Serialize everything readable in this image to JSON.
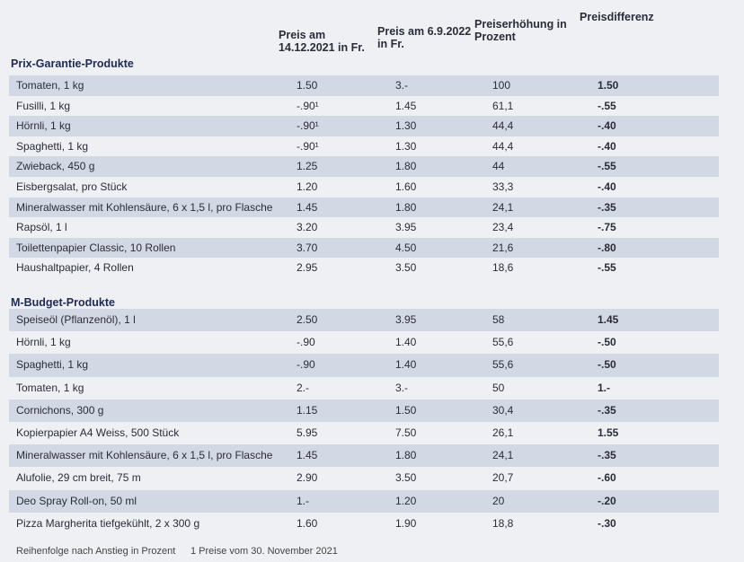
{
  "header": {
    "columns": [
      "Preis am 14.12.2021 in Fr.",
      "Preis am 6.9.2022 in Fr.",
      "Preiserhöhung in Prozent",
      "Preisdifferenz"
    ]
  },
  "sections": [
    {
      "title": "Prix-Garantie-Produkte",
      "rows": [
        [
          "Tomaten, 1 kg",
          "1.50",
          "3.-",
          "100",
          "1.50"
        ],
        [
          "Fusilli, 1 kg",
          "-.90¹",
          "1.45",
          "61,1",
          "-.55"
        ],
        [
          "Hörnli, 1 kg",
          "-.90¹",
          "1.30",
          "44,4",
          "-.40"
        ],
        [
          "Spaghetti, 1 kg",
          "-.90¹",
          "1.30",
          "44,4",
          "-.40"
        ],
        [
          "Zwieback, 450 g",
          "1.25",
          "1.80",
          "44",
          "-.55"
        ],
        [
          "Eisbergsalat, pro Stück",
          "1.20",
          "1.60",
          "33,3",
          "-.40"
        ],
        [
          "Mineralwasser mit Kohlensäure, 6 x 1,5 l, pro Flasche",
          "1.45",
          "1.80",
          "24,1",
          "-.35"
        ],
        [
          "Rapsöl, 1 l",
          "3.20",
          "3.95",
          "23,4",
          "-.75"
        ],
        [
          "Toilettenpapier Classic, 10 Rollen",
          "3.70",
          "4.50",
          "21,6",
          "-.80"
        ],
        [
          "Haushaltpapier, 4 Rollen",
          "2.95",
          "3.50",
          "18,6",
          "-.55"
        ]
      ]
    },
    {
      "title": "M-Budget-Produkte",
      "rows": [
        [
          "Speiseöl (Pflanzenöl), 1 l",
          "2.50",
          "3.95",
          "58",
          "1.45"
        ],
        [
          "Hörnli, 1 kg",
          "-.90",
          "1.40",
          "55,6",
          "-.50"
        ],
        [
          "Spaghetti, 1 kg",
          "-.90",
          "1.40",
          "55,6",
          "-.50"
        ],
        [
          "Tomaten, 1 kg",
          "2.-",
          "3.-",
          "50",
          "1.-"
        ],
        [
          "Cornichons, 300 g",
          "1.15",
          "1.50",
          "30,4",
          "-.35"
        ],
        [
          "Kopierpapier A4 Weiss, 500 Stück",
          "5.95",
          "7.50",
          "26,1",
          "1.55"
        ],
        [
          "Mineralwasser mit Kohlensäure, 6 x 1,5 l, pro Flasche",
          "1.45",
          "1.80",
          "24,1",
          "-.35"
        ],
        [
          "Alufolie, 29 cm breit, 75 m",
          "2.90",
          "3.50",
          "20,7",
          "-.60"
        ],
        [
          "Deo Spray Roll-on, 50 ml",
          "1.-",
          "1.20",
          "20",
          "-.20"
        ],
        [
          "Pizza Margherita tiefgekühlt, 2 x 300 g",
          "1.60",
          "1.90",
          "18,8",
          "-.30"
        ]
      ]
    }
  ],
  "footer": {
    "order": "Reihenfolge nach Anstieg in Prozent",
    "note": "1 Preise vom 30. November 2021"
  }
}
